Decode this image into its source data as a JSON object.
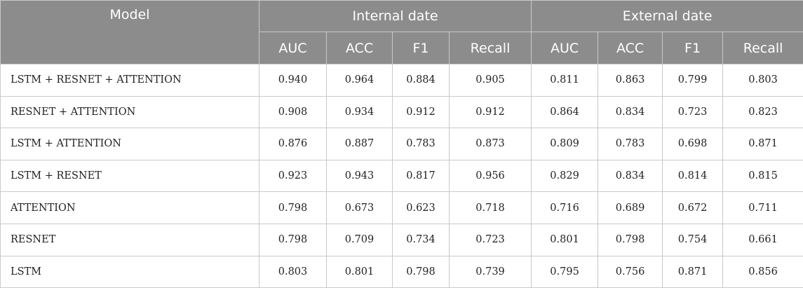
{
  "header": {
    "model": "Model",
    "internal": "Internal date",
    "external": "External date",
    "metrics": [
      "AUC",
      "ACC",
      "F1",
      "Recall"
    ]
  },
  "rows": [
    {
      "model": "LSTM + RESNET + ATTENTION",
      "internal": [
        "0.940",
        "0.964",
        "0.884",
        "0.905"
      ],
      "external": [
        "0.811",
        "0.863",
        "0.799",
        "0.803"
      ]
    },
    {
      "model": "RESNET + ATTENTION",
      "internal": [
        "0.908",
        "0.934",
        "0.912",
        "0.912"
      ],
      "external": [
        "0.864",
        "0.834",
        "0.723",
        "0.823"
      ]
    },
    {
      "model": "LSTM + ATTENTION",
      "internal": [
        "0.876",
        "0.887",
        "0.783",
        "0.873"
      ],
      "external": [
        "0.809",
        "0.783",
        "0.698",
        "0.871"
      ]
    },
    {
      "model": "LSTM + RESNET",
      "internal": [
        "0.923",
        "0.943",
        "0.817",
        "0.956"
      ],
      "external": [
        "0.829",
        "0.834",
        "0.814",
        "0.815"
      ]
    },
    {
      "model": "ATTENTION",
      "internal": [
        "0.798",
        "0.673",
        "0.623",
        "0.718"
      ],
      "external": [
        "0.716",
        "0.689",
        "0.672",
        "0.711"
      ]
    },
    {
      "model": "RESNET",
      "internal": [
        "0.798",
        "0.709",
        "0.734",
        "0.723"
      ],
      "external": [
        "0.801",
        "0.798",
        "0.754",
        "0.661"
      ]
    },
    {
      "model": "LSTM",
      "internal": [
        "0.803",
        "0.801",
        "0.798",
        "0.739"
      ],
      "external": [
        "0.795",
        "0.756",
        "0.871",
        "0.856"
      ]
    }
  ]
}
